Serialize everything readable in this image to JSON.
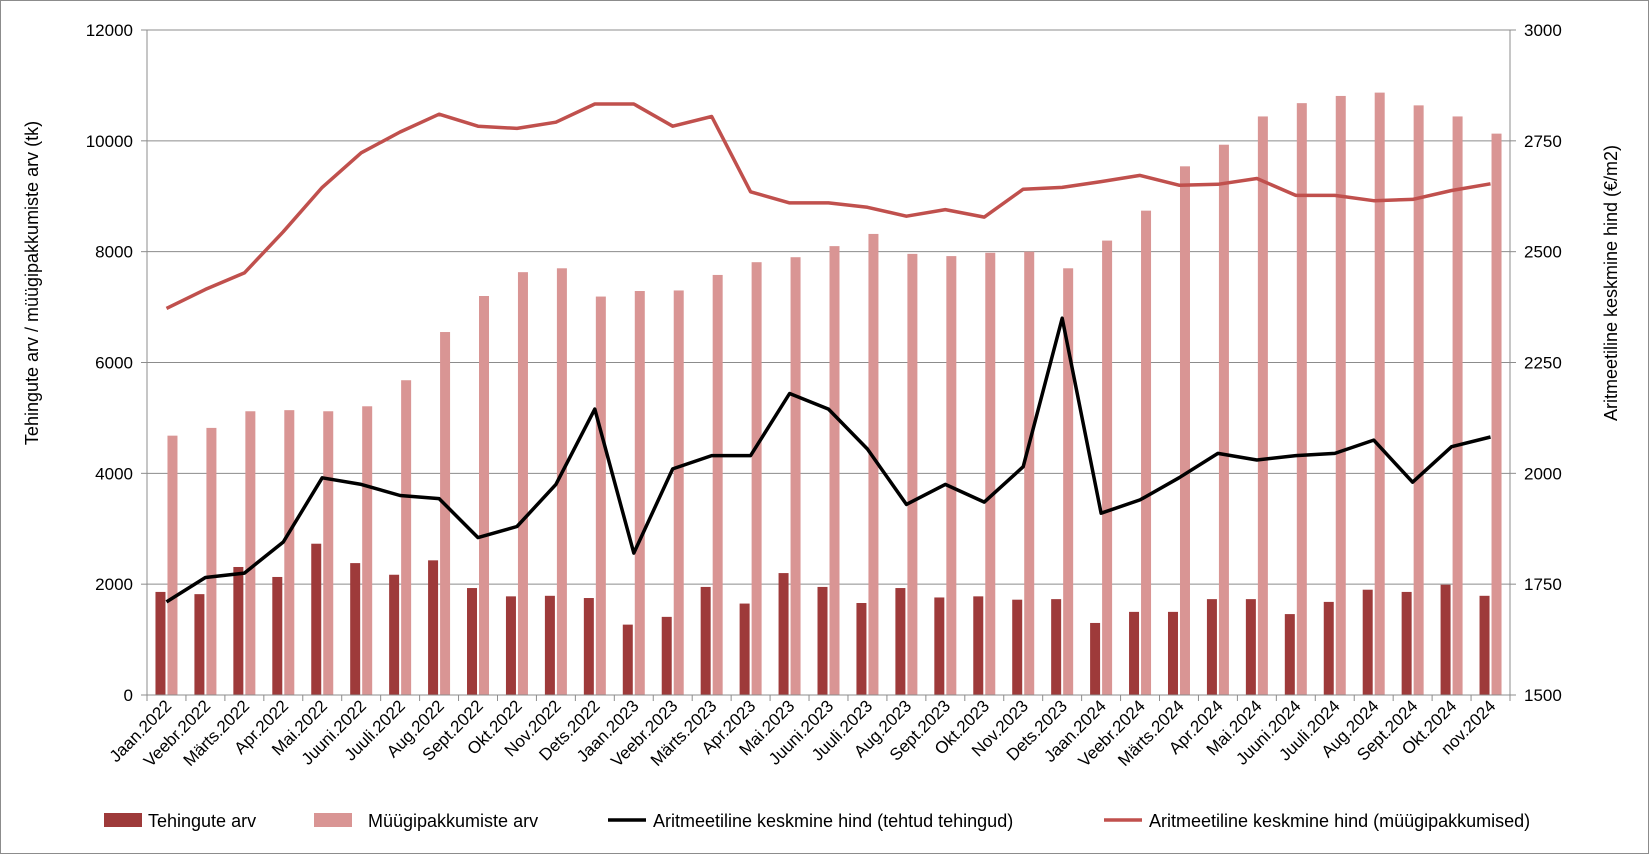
{
  "chart_data": {
    "type": "bar",
    "categories": [
      "Jaan.2022",
      "Veebr.2022",
      "Märts.2022",
      "Apr.2022",
      "Mai.2022",
      "Juuni.2022",
      "Juuli.2022",
      "Aug.2022",
      "Sept.2022",
      "Okt.2022",
      "Nov.2022",
      "Dets.2022",
      "Jaan.2023",
      "Veebr.2023",
      "Märts.2023",
      "Apr.2023",
      "Mai.2023",
      "Juuni.2023",
      "Juuli.2023",
      "Aug.2023",
      "Sept.2023",
      "Okt.2023",
      "Nov.2023",
      "Dets.2023",
      "Jaan.2024",
      "Veebr.2024",
      "Märts.2024",
      "Apr.2024",
      "Mai.2024",
      "Juuni.2024",
      "Juuli.2024",
      "Aug.2024",
      "Sept.2024",
      "Okt.2024",
      "nov.2024"
    ],
    "ylabel": "Tehingute arv / müügipakkumiste arv (tk)",
    "y2label": "Aritmeetiline keskmine hind (€/m2)",
    "ylim": [
      0,
      12000
    ],
    "y2lim": [
      1500,
      3000
    ],
    "yticks": [
      "0",
      "2000",
      "4000",
      "6000",
      "8000",
      "10000",
      "12000"
    ],
    "y2ticks": [
      "1500",
      "1750",
      "2000",
      "2250",
      "2500",
      "2750",
      "3000"
    ],
    "grid": true,
    "legend_position": "bottom",
    "colors": {
      "tehingud_bar": "#9e3a3a",
      "pakkumised_bar": "#d99594",
      "hind_tehingud_line": "#000000",
      "hind_pakkumised_line": "#c0504d"
    },
    "series": [
      {
        "name": "Tehingute arv",
        "type": "bar",
        "axis": "left",
        "values": [
          1860,
          1820,
          2310,
          2130,
          2730,
          2380,
          2170,
          2430,
          1930,
          1780,
          1790,
          1750,
          1270,
          1410,
          1950,
          1650,
          2200,
          1950,
          1660,
          1930,
          1760,
          1780,
          1720,
          1730,
          1300,
          1500,
          1500,
          1730,
          1730,
          1460,
          1680,
          1900,
          1860,
          1990,
          1790
        ]
      },
      {
        "name": "Müügipakkumiste arv",
        "type": "bar",
        "axis": "left",
        "values": [
          4680,
          4820,
          5120,
          5140,
          5120,
          5210,
          5680,
          6550,
          7200,
          7630,
          7700,
          7190,
          7290,
          7300,
          7580,
          7810,
          7900,
          8100,
          8320,
          7960,
          7920,
          7980,
          8000,
          7700,
          8200,
          8740,
          9540,
          9930,
          10440,
          10680,
          10810,
          10870,
          10640,
          10440,
          10130
        ]
      },
      {
        "name": "Aritmeetiline keskmine hind (tehtud tehingud)",
        "type": "line",
        "axis": "right",
        "values": [
          1710,
          1765,
          1775,
          1845,
          1990,
          1975,
          1950,
          1943,
          1855,
          1880,
          1975,
          2145,
          1820,
          2010,
          2040,
          2040,
          2180,
          2145,
          2055,
          1930,
          1975,
          1935,
          2015,
          2350,
          1910,
          1940,
          1990,
          2045,
          2030,
          2040,
          2045,
          2075,
          1980,
          2060,
          2082
        ]
      },
      {
        "name": "Aritmeetiline keskmine hind (müügipakkumised)",
        "type": "line",
        "axis": "right",
        "values": [
          2372,
          2415,
          2452,
          2545,
          2645,
          2723,
          2770,
          2810,
          2783,
          2778,
          2792,
          2833,
          2833,
          2783,
          2805,
          2635,
          2610,
          2610,
          2600,
          2580,
          2595,
          2578,
          2641,
          2645,
          2658,
          2672,
          2650,
          2652,
          2665,
          2627,
          2627,
          2615,
          2618,
          2638,
          2653
        ]
      }
    ]
  }
}
